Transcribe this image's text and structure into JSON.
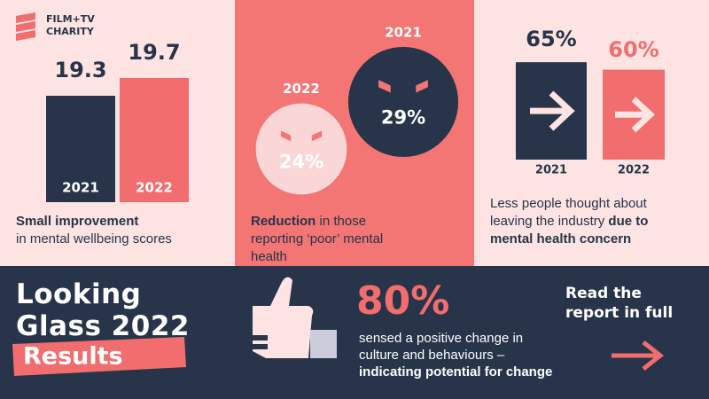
{
  "logo": {
    "line1": "FILM+TV",
    "line2": "CHARITY"
  },
  "chart_data": [
    {
      "type": "bar",
      "categories": [
        "2021",
        "2022"
      ],
      "values": [
        19.3,
        19.7
      ],
      "colors": [
        "#273449",
        "#f26d6d"
      ],
      "ylim": [
        16.9,
        19.9
      ],
      "caption": {
        "bold": "Small improvement",
        "text": "in mental wellbeing scores"
      }
    },
    {
      "type": "bubble",
      "categories": [
        "2022",
        "2021"
      ],
      "values": [
        24,
        29
      ],
      "value_labels": [
        "24%",
        "29%"
      ],
      "colors": [
        "#fbd6d6",
        "#273449"
      ],
      "caption": {
        "bold": "Reduction",
        "text": " in those reporting ‘poor’ mental health"
      }
    },
    {
      "type": "arrow-bar",
      "categories": [
        "2021",
        "2022"
      ],
      "values": [
        65,
        60
      ],
      "value_labels": [
        "65%",
        "60%"
      ],
      "colors": [
        "#273449",
        "#f26d6d"
      ],
      "ylim": [
        0,
        100
      ],
      "caption": {
        "text": "Less people thought about leaving the industry ",
        "bold": "due to mental health concern"
      }
    }
  ],
  "footer": {
    "title1": "Looking",
    "title2": "Glass 2022",
    "title3": "Results",
    "stat": "80%",
    "text": "sensed a positive change in culture and behaviours –",
    "bold": "indicating potential for change",
    "cta": "Read the report in full"
  }
}
